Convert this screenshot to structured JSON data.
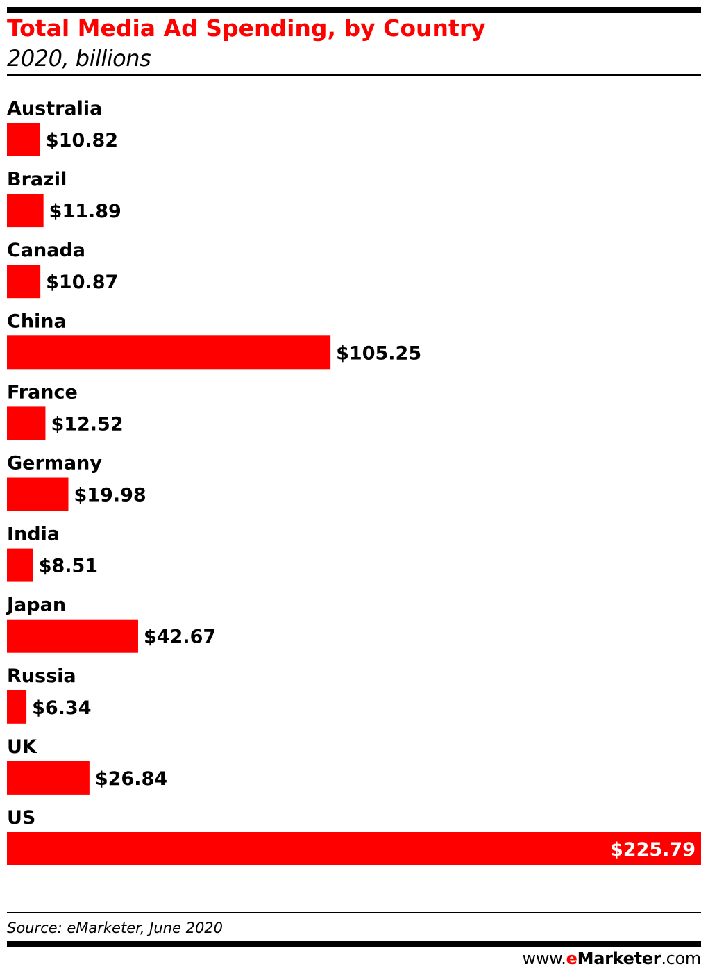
{
  "header": {
    "title": "Total Media Ad Spending, by Country",
    "subtitle": "2020, billions"
  },
  "footer": {
    "source": "Source: eMarketer, June 2020",
    "brand_prefix": "www.",
    "brand_e": "e",
    "brand_name": "Marketer",
    "brand_suffix": ".com"
  },
  "colors": {
    "accent": "#ff0000",
    "text": "#000000",
    "inside_label": "#ffffff"
  },
  "chart_data": {
    "type": "bar",
    "orientation": "horizontal",
    "title": "Total Media Ad Spending, by Country",
    "subtitle": "2020, billions",
    "categories": [
      "Australia",
      "Brazil",
      "Canada",
      "China",
      "France",
      "Germany",
      "India",
      "Japan",
      "Russia",
      "UK",
      "US"
    ],
    "values": [
      10.82,
      11.89,
      10.87,
      105.25,
      12.52,
      19.98,
      8.51,
      42.67,
      6.34,
      26.84,
      225.79
    ],
    "value_labels": [
      "$10.82",
      "$11.89",
      "$10.87",
      "$105.25",
      "$12.52",
      "$19.98",
      "$8.51",
      "$42.67",
      "$6.34",
      "$26.84",
      "$225.79"
    ],
    "xlim": [
      0,
      225.79
    ],
    "grid": false,
    "legend": "none"
  }
}
